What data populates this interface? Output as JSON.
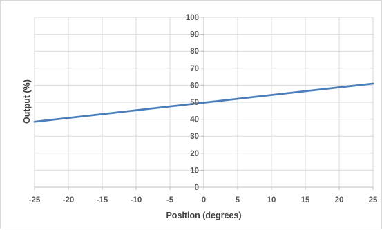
{
  "chart_data": {
    "type": "line",
    "title": "",
    "xlabel": "Position (degrees)",
    "ylabel": "Output (%)",
    "xlim": [
      -25,
      25
    ],
    "ylim": [
      0,
      100
    ],
    "x_ticks": [
      -25,
      -20,
      -15,
      -10,
      -5,
      0,
      5,
      10,
      15,
      20,
      25
    ],
    "y_ticks": [
      0,
      10,
      20,
      30,
      40,
      50,
      60,
      70,
      80,
      90,
      100
    ],
    "grid": true,
    "legend": "none",
    "series": [
      {
        "color": "#4a7ebb",
        "x": [
          -25,
          25
        ],
        "y": [
          38.5,
          61
        ]
      }
    ],
    "colors": {
      "grid": "#d9d9d9",
      "axis": "#bfbfbf",
      "text": "#595959"
    }
  }
}
